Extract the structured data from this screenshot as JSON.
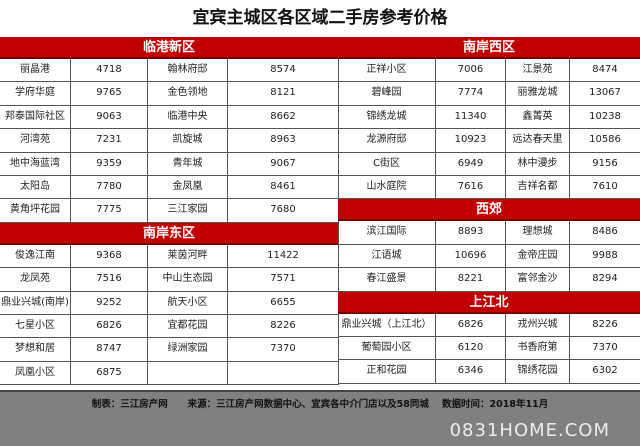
{
  "title": "宜宾主城区各区域二手房参考价格",
  "left": [
    {
      "name": "临港新区",
      "rows": [
        [
          "丽晶港",
          "4718",
          "翰林府邸",
          "8574"
        ],
        [
          "学府华庭",
          "9765",
          "金色领地",
          "8121"
        ],
        [
          "邦泰国际社区",
          "9063",
          "临港中央",
          "8662"
        ],
        [
          "河湾苑",
          "7231",
          "凯旋城",
          "8963"
        ],
        [
          "地中海蓝湾",
          "9359",
          "青年城",
          "9067"
        ],
        [
          "太阳岛",
          "7780",
          "金凤凰",
          "8461"
        ],
        [
          "黄角坪花园",
          "7775",
          "三江家园",
          "7680"
        ]
      ]
    },
    {
      "name": "南岸东区",
      "rows": [
        [
          "俊逸江南",
          "9368",
          "莱茵河畔",
          "11422"
        ],
        [
          "龙凤苑",
          "7516",
          "中山生态园",
          "7571"
        ],
        [
          "鼎业兴城(南岸)",
          "9252",
          "航天小区",
          "6655"
        ],
        [
          "七星小区",
          "6826",
          "宜都花园",
          "8226"
        ],
        [
          "梦想和居",
          "8747",
          "绿洲家园",
          "7370"
        ],
        [
          "凤凰小区",
          "6875",
          "",
          ""
        ]
      ]
    }
  ],
  "right": [
    {
      "name": "南岸西区",
      "rows": [
        [
          "正祥小区",
          "7006",
          "江景苑",
          "8474"
        ],
        [
          "碧峰园",
          "7774",
          "丽雅龙城",
          "13067"
        ],
        [
          "锦绣龙城",
          "11340",
          "鑫菁英",
          "10238"
        ],
        [
          "龙源府邸",
          "10923",
          "远达春天里",
          "10586"
        ],
        [
          "C街区",
          "6949",
          "林中漫步",
          "9156"
        ],
        [
          "山水庭院",
          "7616",
          "吉祥名都",
          "7610"
        ]
      ]
    },
    {
      "name": "西郊",
      "rows": [
        [
          "滨江国际",
          "8893",
          "理想城",
          "8486"
        ],
        [
          "江语城",
          "10696",
          "金帝庄园",
          "9988"
        ],
        [
          "春江盛景",
          "8221",
          "富邻金沙",
          "8294"
        ]
      ]
    },
    {
      "name": "上江北",
      "rows": [
        [
          "鼎业兴城（上江北）",
          "6826",
          "戎州兴城",
          "8226"
        ],
        [
          "葡萄园小区",
          "6120",
          "书香府第",
          "7370"
        ],
        [
          "正和花园",
          "6346",
          "锦绣花园",
          "6302"
        ]
      ]
    }
  ],
  "footer": "制表：三江房产网      来源：三江房产网数据中心、宜宾各中介门店以及58同城    数据时间：2018年11月",
  "watermark": "0831HOME.COM",
  "colors": {
    "header": "#c00000",
    "footer": "#808080"
  }
}
